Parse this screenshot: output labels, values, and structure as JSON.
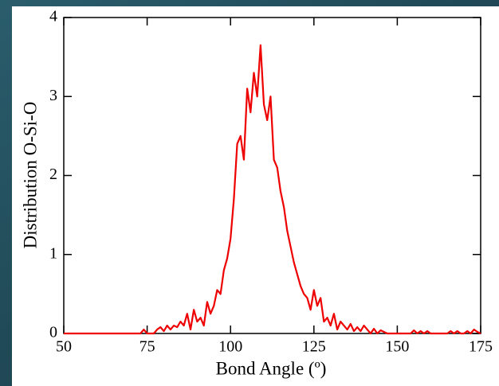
{
  "chart_data": {
    "type": "line",
    "x_label": "Bond Angle (º)",
    "y_label": "Distribution O-Si-O",
    "x": [
      50,
      51,
      52,
      53,
      54,
      55,
      56,
      57,
      58,
      59,
      60,
      61,
      62,
      63,
      64,
      65,
      66,
      67,
      68,
      69,
      70,
      71,
      72,
      73,
      74,
      75,
      76,
      77,
      78,
      79,
      80,
      81,
      82,
      83,
      84,
      85,
      86,
      87,
      88,
      89,
      90,
      91,
      92,
      93,
      94,
      95,
      96,
      97,
      98,
      99,
      100,
      101,
      102,
      103,
      104,
      105,
      106,
      107,
      108,
      109,
      110,
      111,
      112,
      113,
      114,
      115,
      116,
      117,
      118,
      119,
      120,
      121,
      122,
      123,
      124,
      125,
      126,
      127,
      128,
      129,
      130,
      131,
      132,
      133,
      134,
      135,
      136,
      137,
      138,
      139,
      140,
      141,
      142,
      143,
      144,
      145,
      146,
      147,
      148,
      149,
      150,
      151,
      152,
      153,
      154,
      155,
      156,
      157,
      158,
      159,
      160,
      161,
      162,
      163,
      164,
      165,
      166,
      167,
      168,
      169,
      170,
      171,
      172,
      173,
      174,
      175
    ],
    "series": [
      {
        "name": "O-Si-O",
        "color": "#ee0000",
        "values": [
          0,
          0,
          0,
          0,
          0,
          0,
          0,
          0,
          0,
          0,
          0,
          0,
          0,
          0,
          0,
          0,
          0,
          0,
          0,
          0,
          0,
          0,
          0,
          0,
          0.05,
          0,
          0,
          0,
          0.05,
          0.08,
          0.03,
          0.1,
          0.05,
          0.1,
          0.08,
          0.15,
          0.1,
          0.25,
          0.05,
          0.3,
          0.15,
          0.2,
          0.1,
          0.4,
          0.25,
          0.35,
          0.55,
          0.5,
          0.8,
          0.95,
          1.2,
          1.7,
          2.4,
          2.5,
          2.2,
          3.1,
          2.8,
          3.3,
          3.0,
          3.65,
          2.9,
          2.7,
          3.0,
          2.2,
          2.1,
          1.8,
          1.6,
          1.3,
          1.1,
          0.9,
          0.75,
          0.6,
          0.5,
          0.45,
          0.3,
          0.55,
          0.35,
          0.45,
          0.15,
          0.2,
          0.1,
          0.25,
          0.05,
          0.15,
          0.1,
          0.05,
          0.12,
          0.03,
          0.08,
          0.03,
          0.1,
          0.05,
          0,
          0.06,
          0,
          0.04,
          0.02,
          0,
          0,
          0,
          0,
          0,
          0,
          0,
          0,
          0.04,
          0,
          0.03,
          0,
          0.03,
          0,
          0,
          0,
          0,
          0,
          0,
          0.03,
          0,
          0.03,
          0,
          0,
          0.03,
          0,
          0.05,
          0.02,
          0
        ]
      }
    ],
    "xlim": [
      50,
      175
    ],
    "xticks": [
      50,
      75,
      100,
      125,
      150,
      175
    ],
    "ylim": [
      0,
      4
    ],
    "yticks": [
      0,
      1,
      2,
      3,
      4
    ]
  }
}
